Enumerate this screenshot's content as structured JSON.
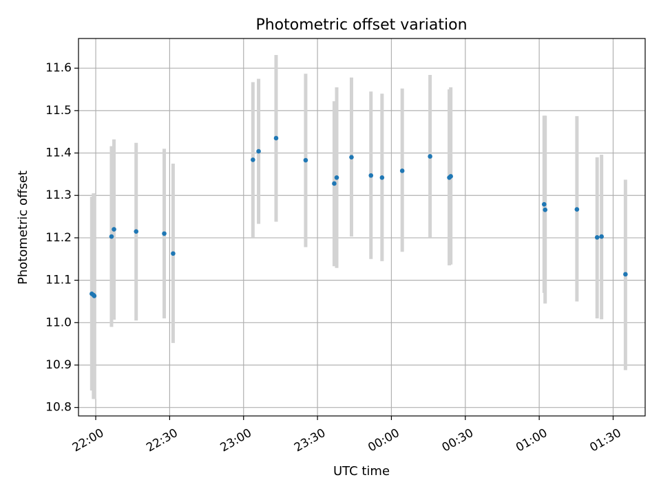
{
  "chart_data": {
    "type": "scatter",
    "title": "Photometric offset variation",
    "xlabel": "UTC time",
    "ylabel": "Photometric offset",
    "x_axis_type": "time",
    "xlim": [
      "21:53",
      "01:43"
    ],
    "ylim": [
      10.78,
      11.67
    ],
    "grid": true,
    "x_ticks": [
      {
        "time": "22:00",
        "label": "22:00"
      },
      {
        "time": "22:30",
        "label": "22:30"
      },
      {
        "time": "23:00",
        "label": "23:00"
      },
      {
        "time": "23:30",
        "label": "23:30"
      },
      {
        "time": "00:00",
        "label": "00:00"
      },
      {
        "time": "00:30",
        "label": "00:30"
      },
      {
        "time": "01:00",
        "label": "01:00"
      },
      {
        "time": "01:30",
        "label": "01:30"
      }
    ],
    "y_ticks": [
      {
        "value": 10.8,
        "label": "10.8"
      },
      {
        "value": 10.9,
        "label": "10.9"
      },
      {
        "value": 11.0,
        "label": "11.0"
      },
      {
        "value": 11.1,
        "label": "11.1"
      },
      {
        "value": 11.2,
        "label": "11.2"
      },
      {
        "value": 11.3,
        "label": "11.3"
      },
      {
        "value": 11.4,
        "label": "11.4"
      },
      {
        "value": 11.5,
        "label": "11.5"
      },
      {
        "value": 11.6,
        "label": "11.6"
      }
    ],
    "colors": {
      "marker": "#1f77b4",
      "error_bar": "#d3d3d3",
      "grid": "#b0b0b0"
    },
    "points": [
      {
        "time": "21:58:24",
        "y": 11.068,
        "ylow": 10.84,
        "yhigh": 11.297
      },
      {
        "time": "21:59:06",
        "y": 11.065,
        "ylow": 10.82,
        "yhigh": 11.305
      },
      {
        "time": "21:59:24",
        "y": 11.063,
        "ylow": 10.82,
        "yhigh": 11.303
      },
      {
        "time": "22:06:24",
        "y": 11.203,
        "ylow": 10.99,
        "yhigh": 11.416
      },
      {
        "time": "22:07:24",
        "y": 11.22,
        "ylow": 11.007,
        "yhigh": 11.432
      },
      {
        "time": "22:16:24",
        "y": 11.215,
        "ylow": 11.005,
        "yhigh": 11.424
      },
      {
        "time": "22:27:48",
        "y": 11.21,
        "ylow": 11.01,
        "yhigh": 11.41
      },
      {
        "time": "22:31:24",
        "y": 11.163,
        "ylow": 10.952,
        "yhigh": 11.375
      },
      {
        "time": "23:03:48",
        "y": 11.384,
        "ylow": 11.2,
        "yhigh": 11.567
      },
      {
        "time": "23:06:06",
        "y": 11.404,
        "ylow": 11.233,
        "yhigh": 11.575
      },
      {
        "time": "23:13:12",
        "y": 11.435,
        "ylow": 11.238,
        "yhigh": 11.631
      },
      {
        "time": "23:25:12",
        "y": 11.383,
        "ylow": 11.178,
        "yhigh": 11.587
      },
      {
        "time": "23:36:48",
        "y": 11.328,
        "ylow": 11.133,
        "yhigh": 11.522
      },
      {
        "time": "23:37:48",
        "y": 11.342,
        "ylow": 11.129,
        "yhigh": 11.555
      },
      {
        "time": "23:43:48",
        "y": 11.39,
        "ylow": 11.203,
        "yhigh": 11.578
      },
      {
        "time": "23:51:42",
        "y": 11.347,
        "ylow": 11.15,
        "yhigh": 11.545
      },
      {
        "time": "23:56:12",
        "y": 11.342,
        "ylow": 11.145,
        "yhigh": 11.54
      },
      {
        "time": "00:04:24",
        "y": 11.358,
        "ylow": 11.167,
        "yhigh": 11.552
      },
      {
        "time": "00:15:42",
        "y": 11.392,
        "ylow": 11.2,
        "yhigh": 11.584
      },
      {
        "time": "00:23:30",
        "y": 11.342,
        "ylow": 11.135,
        "yhigh": 11.55
      },
      {
        "time": "00:24:06",
        "y": 11.345,
        "ylow": 11.137,
        "yhigh": 11.555
      },
      {
        "time": "01:02:00",
        "y": 11.279,
        "ylow": 11.07,
        "yhigh": 11.488
      },
      {
        "time": "01:02:24",
        "y": 11.266,
        "ylow": 11.045,
        "yhigh": 11.488
      },
      {
        "time": "01:15:18",
        "y": 11.267,
        "ylow": 11.05,
        "yhigh": 11.487
      },
      {
        "time": "01:23:30",
        "y": 11.201,
        "ylow": 11.01,
        "yhigh": 11.39
      },
      {
        "time": "01:25:18",
        "y": 11.203,
        "ylow": 11.008,
        "yhigh": 11.396
      },
      {
        "time": "01:35:00",
        "y": 11.114,
        "ylow": 10.888,
        "yhigh": 11.337
      }
    ]
  }
}
